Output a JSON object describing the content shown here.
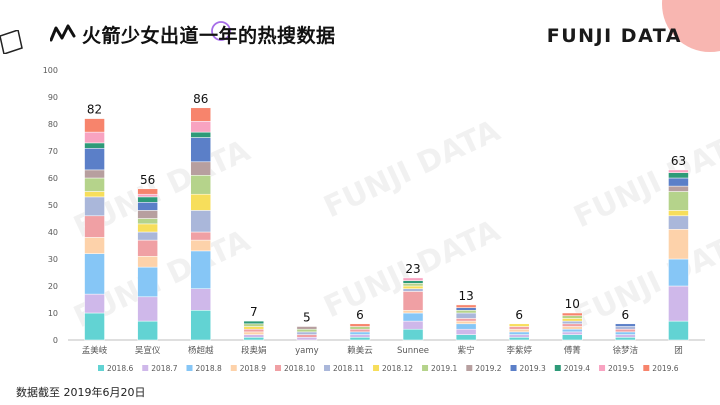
{
  "header": {
    "title": "火箭少女出道一年的热搜数据",
    "brand": "FUNJI DATA",
    "watermark": "FUNJI DATA"
  },
  "footnote": "数据截至 2019年6月20日",
  "colors": {
    "accent_pink": "#f7a9a3",
    "axis": "#bfbfbf",
    "label_text": "#595959"
  },
  "chart_data": {
    "type": "bar",
    "stacked": true,
    "title": "火箭少女出道一年的热搜数据",
    "xlabel": "",
    "ylabel": "",
    "ylim": [
      0,
      100
    ],
    "yticks": [
      0,
      10,
      20,
      30,
      40,
      50,
      60,
      70,
      80,
      90,
      100
    ],
    "categories": [
      "孟美岐",
      "吴宣仪",
      "杨超越",
      "段奥娟",
      "yamy",
      "赖美云",
      "Sunnee",
      "紫宁",
      "李紫婷",
      "傅菁",
      "徐梦洁",
      "团"
    ],
    "totals": [
      82,
      56,
      86,
      7,
      5,
      6,
      23,
      13,
      6,
      10,
      6,
      63
    ],
    "legend_position": "bottom",
    "series": [
      {
        "name": "2018.6",
        "color": "#62d3d3",
        "values": [
          10,
          7,
          11,
          1,
          0,
          1,
          4,
          2,
          1,
          2,
          1,
          7
        ]
      },
      {
        "name": "2018.7",
        "color": "#cfb8ea",
        "values": [
          7,
          9,
          8,
          1,
          1,
          1,
          3,
          2,
          1,
          1,
          1,
          13
        ]
      },
      {
        "name": "2018.8",
        "color": "#86c6f6",
        "values": [
          15,
          11,
          14,
          0,
          0,
          1,
          3,
          2,
          1,
          1,
          1,
          10
        ]
      },
      {
        "name": "2018.9",
        "color": "#fdd2aa",
        "values": [
          6,
          4,
          4,
          1,
          0,
          0,
          1,
          1,
          1,
          1,
          0,
          11
        ]
      },
      {
        "name": "2018.10",
        "color": "#f0a0a4",
        "values": [
          8,
          6,
          3,
          1,
          1,
          1,
          7,
          1,
          1,
          1,
          1,
          0
        ]
      },
      {
        "name": "2018.11",
        "color": "#aab7da",
        "values": [
          7,
          3,
          8,
          0,
          1,
          0,
          1,
          2,
          0,
          1,
          1,
          5
        ]
      },
      {
        "name": "2018.12",
        "color": "#f7de5b",
        "values": [
          2,
          3,
          6,
          1,
          0,
          0,
          1,
          0,
          1,
          1,
          0,
          2
        ]
      },
      {
        "name": "2019.1",
        "color": "#b5d38b",
        "values": [
          5,
          2,
          7,
          1,
          1,
          1,
          1,
          1,
          0,
          1,
          0,
          7
        ]
      },
      {
        "name": "2019.2",
        "color": "#b79f9f",
        "values": [
          3,
          3,
          5,
          0,
          1,
          0,
          0,
          0,
          0,
          0,
          0,
          2
        ]
      },
      {
        "name": "2019.3",
        "color": "#5b7fc8",
        "values": [
          8,
          3,
          9,
          0,
          0,
          0,
          0,
          1,
          0,
          0,
          1,
          3
        ]
      },
      {
        "name": "2019.4",
        "color": "#2e9a78",
        "values": [
          2,
          2,
          2,
          1,
          0,
          0,
          1,
          0,
          0,
          0,
          0,
          2
        ]
      },
      {
        "name": "2019.5",
        "color": "#f8a3c1",
        "values": [
          4,
          1,
          4,
          0,
          0,
          0,
          1,
          0,
          0,
          0,
          0,
          1
        ]
      },
      {
        "name": "2019.6",
        "color": "#f7846c",
        "values": [
          5,
          2,
          5,
          0,
          0,
          1,
          0,
          1,
          0,
          1,
          0,
          0
        ]
      }
    ]
  }
}
